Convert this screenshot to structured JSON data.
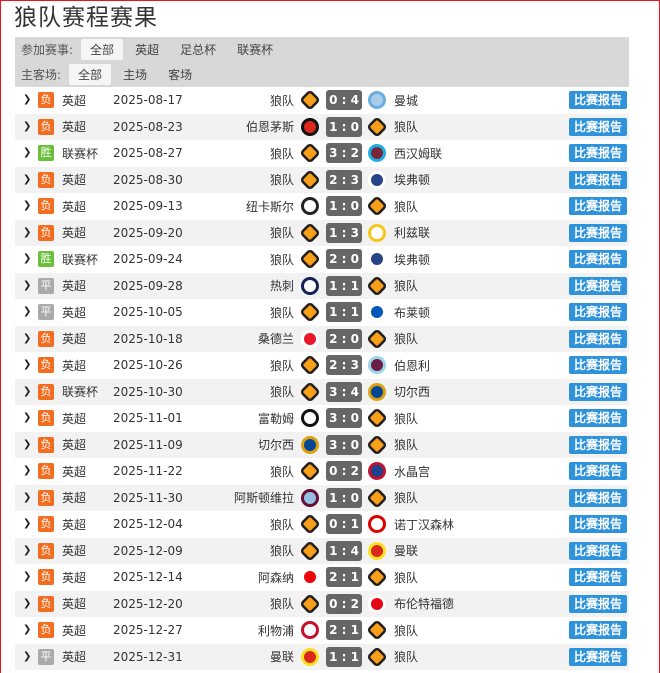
{
  "title": "狼队赛程赛果",
  "filters": {
    "competition": {
      "label": "参加赛事:",
      "options": [
        "全部",
        "英超",
        "足总杯",
        "联赛杯"
      ],
      "selected": "全部"
    },
    "venue": {
      "label": "主客场:",
      "options": [
        "全部",
        "主场",
        "客场"
      ],
      "selected": "全部"
    }
  },
  "colors": {
    "loss": "#f36d21",
    "win": "#6abf3b",
    "draw": "#aaaaaa",
    "button": "#2f93dc",
    "score_bg": "#666666"
  },
  "report_label": "比赛报告",
  "matches": [
    {
      "result": "负",
      "comp": "英超",
      "date": "2025-08-17",
      "home": "狼队",
      "score": "0 : 4",
      "away": "曼城"
    },
    {
      "result": "负",
      "comp": "英超",
      "date": "2025-08-23",
      "home": "伯恩茅斯",
      "score": "1 : 0",
      "away": "狼队"
    },
    {
      "result": "胜",
      "comp": "联赛杯",
      "date": "2025-08-27",
      "home": "狼队",
      "score": "3 : 2",
      "away": "西汉姆联"
    },
    {
      "result": "负",
      "comp": "英超",
      "date": "2025-08-30",
      "home": "狼队",
      "score": "2 : 3",
      "away": "埃弗顿"
    },
    {
      "result": "负",
      "comp": "英超",
      "date": "2025-09-13",
      "home": "纽卡斯尔",
      "score": "1 : 0",
      "away": "狼队"
    },
    {
      "result": "负",
      "comp": "英超",
      "date": "2025-09-20",
      "home": "狼队",
      "score": "1 : 3",
      "away": "利兹联"
    },
    {
      "result": "胜",
      "comp": "联赛杯",
      "date": "2025-09-24",
      "home": "狼队",
      "score": "2 : 0",
      "away": "埃弗顿"
    },
    {
      "result": "平",
      "comp": "英超",
      "date": "2025-09-28",
      "home": "热刺",
      "score": "1 : 1",
      "away": "狼队"
    },
    {
      "result": "平",
      "comp": "英超",
      "date": "2025-10-05",
      "home": "狼队",
      "score": "1 : 1",
      "away": "布莱顿"
    },
    {
      "result": "负",
      "comp": "英超",
      "date": "2025-10-18",
      "home": "桑德兰",
      "score": "2 : 0",
      "away": "狼队"
    },
    {
      "result": "负",
      "comp": "英超",
      "date": "2025-10-26",
      "home": "狼队",
      "score": "2 : 3",
      "away": "伯恩利"
    },
    {
      "result": "负",
      "comp": "联赛杯",
      "date": "2025-10-30",
      "home": "狼队",
      "score": "3 : 4",
      "away": "切尔西"
    },
    {
      "result": "负",
      "comp": "英超",
      "date": "2025-11-01",
      "home": "富勒姆",
      "score": "3 : 0",
      "away": "狼队"
    },
    {
      "result": "负",
      "comp": "英超",
      "date": "2025-11-09",
      "home": "切尔西",
      "score": "3 : 0",
      "away": "狼队"
    },
    {
      "result": "负",
      "comp": "英超",
      "date": "2025-11-22",
      "home": "狼队",
      "score": "0 : 2",
      "away": "水晶宫"
    },
    {
      "result": "负",
      "comp": "英超",
      "date": "2025-11-30",
      "home": "阿斯顿维拉",
      "score": "1 : 0",
      "away": "狼队"
    },
    {
      "result": "负",
      "comp": "英超",
      "date": "2025-12-04",
      "home": "狼队",
      "score": "0 : 1",
      "away": "诺丁汉森林"
    },
    {
      "result": "负",
      "comp": "英超",
      "date": "2025-12-09",
      "home": "狼队",
      "score": "1 : 4",
      "away": "曼联"
    },
    {
      "result": "负",
      "comp": "英超",
      "date": "2025-12-14",
      "home": "阿森纳",
      "score": "2 : 1",
      "away": "狼队"
    },
    {
      "result": "负",
      "comp": "英超",
      "date": "2025-12-20",
      "home": "狼队",
      "score": "0 : 2",
      "away": "布伦特福德"
    },
    {
      "result": "负",
      "comp": "英超",
      "date": "2025-12-27",
      "home": "利物浦",
      "score": "2 : 1",
      "away": "狼队"
    },
    {
      "result": "平",
      "comp": "英超",
      "date": "2025-12-31",
      "home": "曼联",
      "score": "1 : 1",
      "away": "狼队"
    }
  ]
}
